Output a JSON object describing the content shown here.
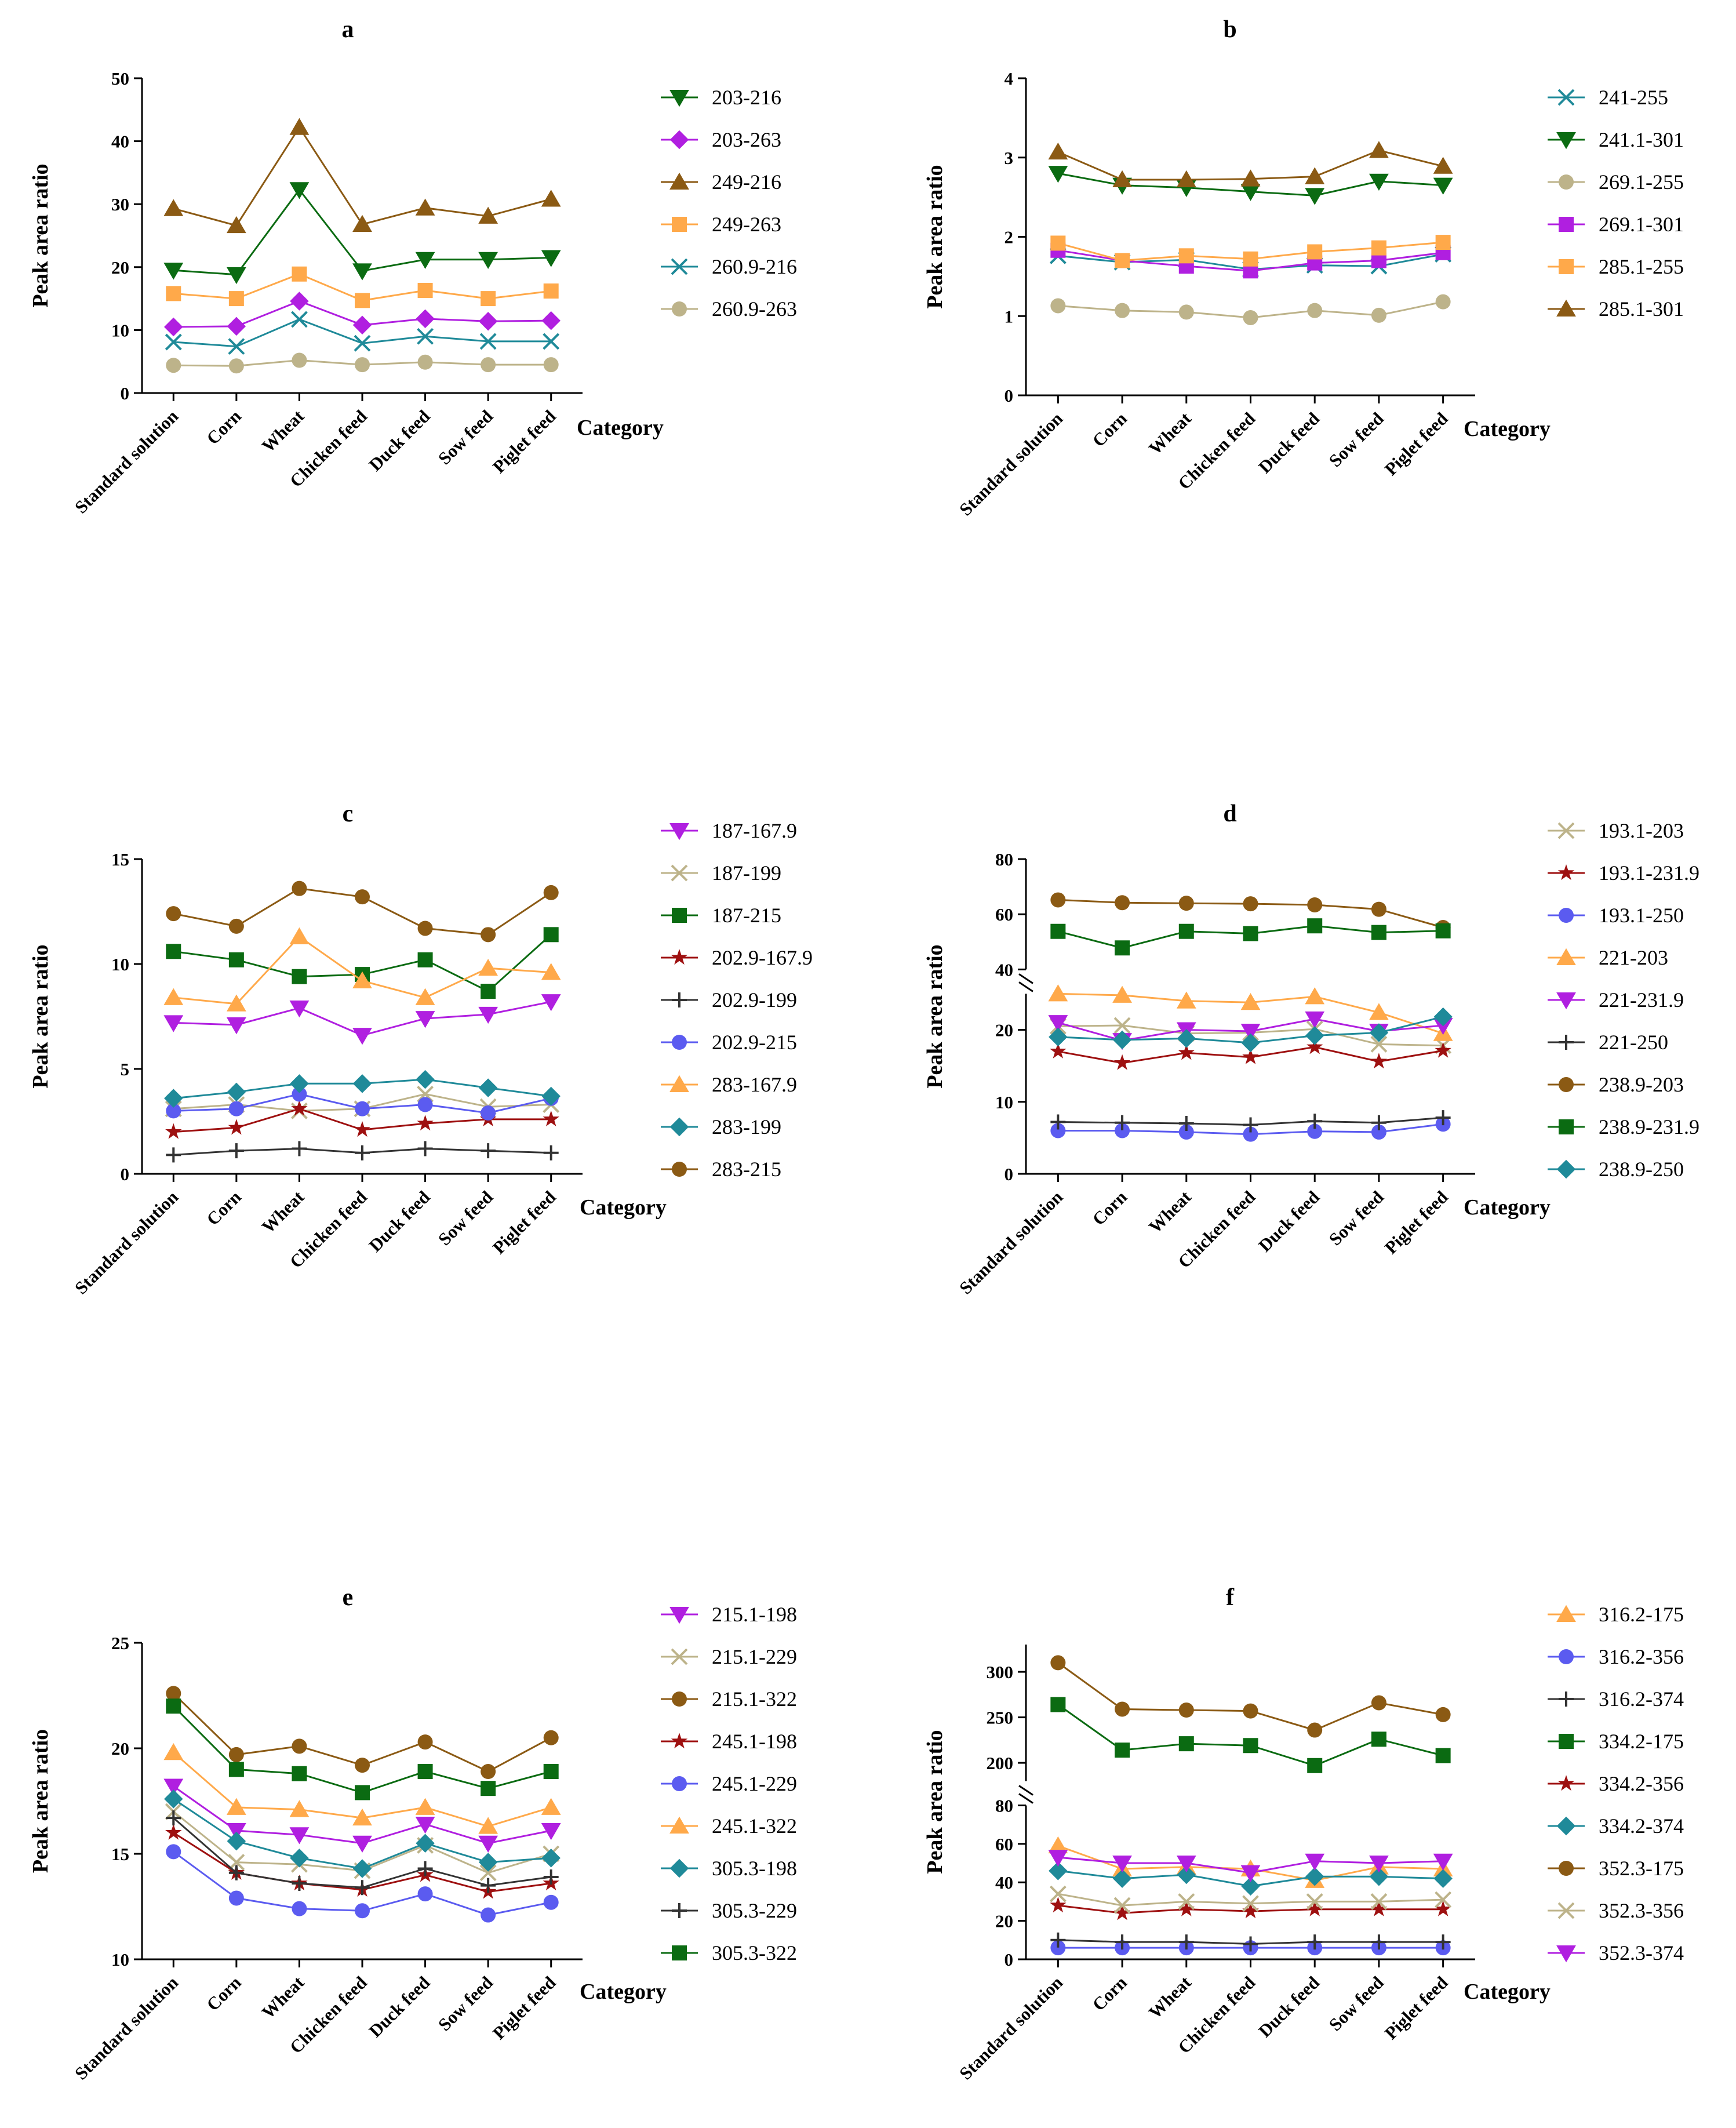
{
  "colors": {
    "brown": "#8B5A14",
    "green": "#0B6B12",
    "magenta": "#B01FE0",
    "orange": "#FFA94A",
    "teal": "#1F8A99",
    "khaki": "#BDB38A",
    "red": "#9E1010",
    "blue": "#5B5BF0",
    "black": "#333333"
  },
  "chart_data": [
    {
      "panel": "a",
      "type": "line",
      "title": "a",
      "xlabel": "Category",
      "ylabel": "Peak area ratio",
      "categories": [
        "Standard solution",
        "Corn",
        "Wheat",
        "Chicken feed",
        "Duck feed",
        "Sow feed",
        "Piglet feed"
      ],
      "ylim": [
        0,
        50
      ],
      "yticks": [
        0,
        10,
        20,
        30,
        40,
        50
      ],
      "series": [
        {
          "name": "203-216",
          "marker": "triangle-down",
          "color": "green",
          "values": [
            19.5,
            18.8,
            32.3,
            19.4,
            21.2,
            21.2,
            21.5
          ]
        },
        {
          "name": "203-263",
          "marker": "diamond",
          "color": "magenta",
          "values": [
            10.5,
            10.6,
            14.6,
            10.8,
            11.8,
            11.4,
            11.5
          ]
        },
        {
          "name": "249-216",
          "marker": "triangle-up",
          "color": "brown",
          "values": [
            29.3,
            26.6,
            42.2,
            26.8,
            29.4,
            28.1,
            30.8
          ]
        },
        {
          "name": "249-263",
          "marker": "square",
          "color": "orange",
          "values": [
            15.8,
            15.0,
            18.9,
            14.7,
            16.3,
            15.0,
            16.2
          ]
        },
        {
          "name": "260.9-216",
          "marker": "x",
          "color": "teal",
          "values": [
            8.1,
            7.4,
            11.7,
            7.9,
            9.0,
            8.2,
            8.2
          ]
        },
        {
          "name": "260.9-263",
          "marker": "circle",
          "color": "khaki",
          "values": [
            4.4,
            4.3,
            5.2,
            4.5,
            4.9,
            4.5,
            4.5
          ]
        }
      ]
    },
    {
      "panel": "b",
      "type": "line",
      "title": "b",
      "xlabel": "Category",
      "ylabel": "Peak area ratio",
      "categories": [
        "Standard solution",
        "Corn",
        "Wheat",
        "Chicken feed",
        "Duck feed",
        "Sow feed",
        "Piglet feed"
      ],
      "ylim": [
        0,
        4
      ],
      "yticks": [
        0,
        1,
        2,
        3,
        4
      ],
      "series": [
        {
          "name": "241-255",
          "marker": "x",
          "color": "teal",
          "values": [
            1.76,
            1.68,
            1.71,
            1.59,
            1.64,
            1.63,
            1.78
          ]
        },
        {
          "name": "241.1-301",
          "marker": "triangle-down",
          "color": "green",
          "values": [
            2.8,
            2.65,
            2.62,
            2.57,
            2.52,
            2.7,
            2.65
          ]
        },
        {
          "name": "269.1-255",
          "marker": "circle",
          "color": "khaki",
          "values": [
            1.13,
            1.07,
            1.05,
            0.98,
            1.07,
            1.01,
            1.18
          ]
        },
        {
          "name": "269.1-301",
          "marker": "square",
          "color": "magenta",
          "values": [
            1.83,
            1.7,
            1.63,
            1.57,
            1.67,
            1.7,
            1.8
          ]
        },
        {
          "name": "285.1-255",
          "marker": "square",
          "color": "orange",
          "values": [
            1.92,
            1.7,
            1.76,
            1.72,
            1.81,
            1.86,
            1.93
          ]
        },
        {
          "name": "285.1-301",
          "marker": "triangle-up",
          "color": "brown",
          "values": [
            3.07,
            2.72,
            2.72,
            2.73,
            2.76,
            3.09,
            2.89
          ]
        }
      ]
    },
    {
      "panel": "c",
      "type": "line",
      "title": "c",
      "xlabel": "Category",
      "ylabel": "Peak area ratio",
      "categories": [
        "Standard solution",
        "Corn",
        "Wheat",
        "Chicken feed",
        "Duck feed",
        "Sow feed",
        "Piglet feed"
      ],
      "ylim": [
        0,
        15
      ],
      "yticks": [
        0,
        5,
        10,
        15
      ],
      "series": [
        {
          "name": "187-167.9",
          "marker": "triangle-down",
          "color": "magenta",
          "values": [
            7.2,
            7.1,
            7.9,
            6.6,
            7.4,
            7.6,
            8.2
          ]
        },
        {
          "name": "187-199",
          "marker": "x",
          "color": "khaki",
          "values": [
            3.1,
            3.3,
            3.0,
            3.1,
            3.8,
            3.2,
            3.3
          ]
        },
        {
          "name": "187-215",
          "marker": "square",
          "color": "green",
          "values": [
            10.6,
            10.2,
            9.4,
            9.5,
            10.2,
            8.7,
            11.4
          ]
        },
        {
          "name": "202.9-167.9",
          "marker": "star",
          "color": "red",
          "values": [
            2.0,
            2.2,
            3.1,
            2.1,
            2.4,
            2.6,
            2.6
          ]
        },
        {
          "name": "202.9-199",
          "marker": "plus",
          "color": "black",
          "values": [
            0.9,
            1.1,
            1.2,
            1.0,
            1.2,
            1.1,
            1.0
          ]
        },
        {
          "name": "202.9-215",
          "marker": "circle",
          "color": "blue",
          "values": [
            3.0,
            3.1,
            3.8,
            3.1,
            3.3,
            2.9,
            3.6
          ]
        },
        {
          "name": "283-167.9",
          "marker": "triangle-up",
          "color": "orange",
          "values": [
            8.4,
            8.1,
            11.3,
            9.2,
            8.4,
            9.8,
            9.6
          ]
        },
        {
          "name": "283-199",
          "marker": "diamond",
          "color": "teal",
          "values": [
            3.6,
            3.9,
            4.3,
            4.3,
            4.5,
            4.1,
            3.7
          ]
        },
        {
          "name": "283-215",
          "marker": "circle",
          "color": "brown",
          "values": [
            12.4,
            11.8,
            13.6,
            13.2,
            11.7,
            11.4,
            13.4
          ]
        }
      ]
    },
    {
      "panel": "d",
      "type": "line",
      "title": "d",
      "xlabel": "Category",
      "ylabel": "Peak area ratio",
      "categories": [
        "Standard solution",
        "Corn",
        "Wheat",
        "Chicken feed",
        "Duck feed",
        "Sow feed",
        "Piglet feed"
      ],
      "ylim": [
        0,
        80
      ],
      "axis_break": [
        25,
        40
      ],
      "yticks": [
        0,
        10,
        20,
        40,
        60,
        80
      ],
      "series": [
        {
          "name": "193.1-203",
          "marker": "x",
          "color": "khaki",
          "values": [
            20.5,
            20.6,
            19.5,
            19.6,
            20.1,
            18.0,
            17.8
          ]
        },
        {
          "name": "193.1-231.9",
          "marker": "star",
          "color": "red",
          "values": [
            17.0,
            15.4,
            16.8,
            16.2,
            17.6,
            15.6,
            17.1
          ]
        },
        {
          "name": "193.1-250",
          "marker": "circle",
          "color": "blue",
          "values": [
            6.0,
            6.0,
            5.8,
            5.5,
            5.9,
            5.8,
            6.9
          ]
        },
        {
          "name": "221-203",
          "marker": "triangle-up",
          "color": "orange",
          "values": [
            25.0,
            24.8,
            24.0,
            23.8,
            24.6,
            22.4,
            19.5
          ]
        },
        {
          "name": "221-231.9",
          "marker": "triangle-down",
          "color": "magenta",
          "values": [
            21.0,
            18.5,
            20.0,
            19.8,
            21.5,
            19.8,
            20.6
          ]
        },
        {
          "name": "221-250",
          "marker": "plus",
          "color": "black",
          "values": [
            7.2,
            7.1,
            7.0,
            6.8,
            7.3,
            7.1,
            7.8
          ]
        },
        {
          "name": "238.9-203",
          "marker": "circle",
          "color": "brown",
          "values": [
            65.2,
            64.2,
            64.0,
            63.8,
            63.4,
            61.8,
            55.2
          ]
        },
        {
          "name": "238.9-231.9",
          "marker": "square",
          "color": "green",
          "values": [
            53.8,
            47.8,
            53.8,
            53.0,
            55.8,
            53.4,
            54.0
          ]
        },
        {
          "name": "238.9-250",
          "marker": "diamond",
          "color": "teal",
          "values": [
            19.0,
            18.6,
            18.8,
            18.2,
            19.2,
            19.6,
            21.8
          ]
        }
      ]
    },
    {
      "panel": "e",
      "type": "line",
      "title": "e",
      "xlabel": "Category",
      "ylabel": "Peak area ratio",
      "categories": [
        "Standard solution",
        "Corn",
        "Wheat",
        "Chicken feed",
        "Duck feed",
        "Sow feed",
        "Piglet feed"
      ],
      "ylim": [
        10,
        25
      ],
      "yticks": [
        10,
        15,
        20,
        25
      ],
      "series": [
        {
          "name": "215.1-198",
          "marker": "triangle-down",
          "color": "magenta",
          "values": [
            18.2,
            16.1,
            15.9,
            15.5,
            16.4,
            15.5,
            16.1
          ]
        },
        {
          "name": "215.1-229",
          "marker": "x",
          "color": "khaki",
          "values": [
            17.0,
            14.6,
            14.5,
            14.2,
            15.4,
            14.1,
            15.0
          ]
        },
        {
          "name": "215.1-322",
          "marker": "circle",
          "color": "brown",
          "values": [
            22.6,
            19.7,
            20.1,
            19.2,
            20.3,
            18.9,
            20.5
          ]
        },
        {
          "name": "245.1-198",
          "marker": "star",
          "color": "red",
          "values": [
            16.0,
            14.1,
            13.6,
            13.3,
            14.0,
            13.2,
            13.6
          ]
        },
        {
          "name": "245.1-229",
          "marker": "circle",
          "color": "blue",
          "values": [
            15.1,
            12.9,
            12.4,
            12.3,
            13.1,
            12.1,
            12.7
          ]
        },
        {
          "name": "245.1-322",
          "marker": "triangle-up",
          "color": "orange",
          "values": [
            19.8,
            17.2,
            17.1,
            16.7,
            17.2,
            16.3,
            17.2
          ]
        },
        {
          "name": "305.3-198",
          "marker": "diamond",
          "color": "teal",
          "values": [
            17.6,
            15.6,
            14.8,
            14.3,
            15.5,
            14.6,
            14.8
          ]
        },
        {
          "name": "305.3-229",
          "marker": "plus",
          "color": "black",
          "values": [
            16.7,
            14.1,
            13.6,
            13.4,
            14.3,
            13.5,
            13.9
          ]
        },
        {
          "name": "305.3-322",
          "marker": "square",
          "color": "green",
          "values": [
            22.0,
            19.0,
            18.8,
            17.9,
            18.9,
            18.1,
            18.9
          ]
        }
      ]
    },
    {
      "panel": "f",
      "type": "line",
      "title": "f",
      "xlabel": "Category",
      "ylabel": "Peak area ratio",
      "categories": [
        "Standard solution",
        "Corn",
        "Wheat",
        "Chicken feed",
        "Duck feed",
        "Sow feed",
        "Piglet feed"
      ],
      "ylim": [
        0,
        330
      ],
      "axis_break": [
        80,
        180
      ],
      "yticks": [
        0,
        20,
        40,
        60,
        80,
        200,
        250,
        300
      ],
      "series": [
        {
          "name": "316.2-175",
          "marker": "triangle-up",
          "color": "orange",
          "values": [
            59,
            47,
            48,
            47,
            41,
            48,
            47
          ]
        },
        {
          "name": "316.2-356",
          "marker": "circle",
          "color": "blue",
          "values": [
            6,
            6,
            6,
            6,
            6,
            6,
            6
          ]
        },
        {
          "name": "316.2-374",
          "marker": "plus",
          "color": "black",
          "values": [
            10,
            9,
            9,
            8,
            9,
            9,
            9
          ]
        },
        {
          "name": "334.2-175",
          "marker": "square",
          "color": "green",
          "values": [
            264,
            214,
            221,
            219,
            197,
            226,
            208
          ]
        },
        {
          "name": "334.2-356",
          "marker": "star",
          "color": "red",
          "values": [
            28,
            24,
            26,
            25,
            26,
            26,
            26
          ]
        },
        {
          "name": "334.2-374",
          "marker": "diamond",
          "color": "teal",
          "values": [
            46,
            42,
            44,
            38,
            43,
            43,
            42
          ]
        },
        {
          "name": "352.3-175",
          "marker": "circle",
          "color": "brown",
          "values": [
            310,
            259,
            258,
            257,
            236,
            266,
            253
          ]
        },
        {
          "name": "352.3-356",
          "marker": "x",
          "color": "khaki",
          "values": [
            34,
            28,
            30,
            29,
            30,
            30,
            31
          ]
        },
        {
          "name": "352.3-374",
          "marker": "triangle-down",
          "color": "magenta",
          "values": [
            53,
            50,
            50,
            45,
            51,
            50,
            51
          ]
        }
      ]
    }
  ]
}
